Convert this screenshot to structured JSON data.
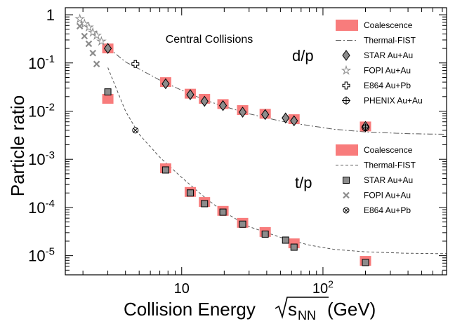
{
  "chart_data": {
    "type": "scatter",
    "title": "Central Collisions",
    "xlabel_prefix": "Collision Energy ",
    "xlabel_sqrt": "s",
    "xlabel_sub": "NN",
    "xlabel_suffix": " (GeV)",
    "ylabel": "Particle ratio",
    "xscale": "log",
    "yscale": "log",
    "xlim": [
      1.5,
      750
    ],
    "ylim": [
      4e-06,
      1.4
    ],
    "xticks": [
      {
        "v": 10,
        "label": "10"
      },
      {
        "v": 100,
        "label": "10",
        "exp": "2"
      }
    ],
    "yticks": [
      {
        "v": 1,
        "label": "1"
      },
      {
        "v": 0.1,
        "label": "10",
        "exp": "-1"
      },
      {
        "v": 0.01,
        "label": "10",
        "exp": "-2"
      },
      {
        "v": 0.001,
        "label": "10",
        "exp": "-3"
      },
      {
        "v": 0.0001,
        "label": "10",
        "exp": "-4"
      },
      {
        "v": 1e-05,
        "label": "10",
        "exp": "-5"
      }
    ],
    "annotations": {
      "dp": "d/p",
      "tp": "t/p"
    },
    "curves": [
      {
        "name": "Thermal-FIST d/p",
        "style": "dashdot",
        "x": [
          3,
          4,
          5,
          7,
          10,
          15,
          20,
          30,
          50,
          80,
          120,
          200,
          400,
          750
        ],
        "y": [
          0.21,
          0.105,
          0.075,
          0.044,
          0.027,
          0.0165,
          0.0125,
          0.0088,
          0.0062,
          0.005,
          0.0042,
          0.0037,
          0.0034,
          0.0033
        ]
      },
      {
        "name": "Thermal-FIST t/p",
        "style": "dashed",
        "x": [
          3,
          4,
          5,
          7,
          10,
          15,
          20,
          30,
          50,
          80,
          120,
          200,
          400,
          750
        ],
        "y": [
          0.08,
          0.01,
          0.0033,
          0.0011,
          0.00042,
          0.00015,
          8e-05,
          4e-05,
          2.4e-05,
          1.65e-05,
          1.35e-05,
          1.2e-05,
          1.12e-05,
          1.1e-05
        ]
      }
    ],
    "series": [
      {
        "name": "Coalescence (d/p)",
        "marker": "band",
        "color": "#f87c7c",
        "x": [
          3,
          7.7,
          11.5,
          14.5,
          19.6,
          27,
          39,
          62.4,
          200
        ],
        "y": [
          0.2,
          0.04,
          0.023,
          0.018,
          0.014,
          0.0105,
          0.0088,
          0.0068,
          0.0048
        ]
      },
      {
        "name": "Coalescence (t/p)",
        "marker": "band",
        "color": "#f87c7c",
        "x": [
          3,
          7.7,
          11.5,
          14.5,
          19.6,
          27,
          39,
          62.4,
          200
        ],
        "y": [
          0.018,
          0.00065,
          0.00021,
          0.00013,
          8.5e-05,
          4.8e-05,
          3.1e-05,
          1.8e-05,
          7.8e-06
        ]
      },
      {
        "name": "STAR Au+Au (d/p)",
        "marker": "diamond",
        "x": [
          3,
          7.7,
          11.5,
          14.5,
          19.6,
          27,
          39,
          54.4,
          62.4,
          200
        ],
        "y": [
          0.2,
          0.037,
          0.022,
          0.016,
          0.013,
          0.0095,
          0.0085,
          0.0072,
          0.0063,
          0.0048
        ]
      },
      {
        "name": "FOPI Au+Au (d/p)",
        "marker": "star",
        "x": [
          1.9,
          2.05,
          2.2,
          2.35,
          2.5,
          2.7
        ],
        "y": [
          0.82,
          0.65,
          0.55,
          0.43,
          0.37,
          0.28
        ]
      },
      {
        "name": "E864 Au+Pb (d/p)",
        "marker": "cross",
        "x": [
          4.7
        ],
        "y": [
          0.095
        ]
      },
      {
        "name": "PHENIX Au+Au (d/p)",
        "marker": "circle-plus",
        "x": [
          200
        ],
        "y": [
          0.0045
        ]
      },
      {
        "name": "STAR Au+Au (t/p)",
        "marker": "square",
        "x": [
          3,
          7.7,
          11.5,
          14.5,
          19.6,
          27,
          39,
          54.4,
          62.4,
          200
        ],
        "y": [
          0.025,
          0.0006,
          0.0002,
          0.00012,
          8e-05,
          4.5e-05,
          2.8e-05,
          2.1e-05,
          1.5e-05,
          7.2e-06
        ]
      },
      {
        "name": "FOPI Au+Au (t/p)",
        "marker": "x",
        "x": [
          1.9,
          2.05,
          2.2,
          2.35,
          2.5
        ],
        "y": [
          0.58,
          0.36,
          0.25,
          0.16,
          0.095
        ]
      },
      {
        "name": "E864 Au+Pb (t/p)",
        "marker": "circle-x",
        "x": [
          4.7
        ],
        "y": [
          0.004
        ]
      }
    ],
    "legend_top": [
      {
        "label": "Coalescence",
        "marker": "band"
      },
      {
        "label": "Thermal-FIST",
        "marker": "dashdot"
      },
      {
        "label": "STAR Au+Au",
        "marker": "diamond"
      },
      {
        "label": "FOPI Au+Au",
        "marker": "star"
      },
      {
        "label": "E864 Au+Pb",
        "marker": "cross"
      },
      {
        "label": "PHENIX Au+Au",
        "marker": "circle-plus"
      }
    ],
    "legend_bottom": [
      {
        "label": "Coalescence",
        "marker": "band"
      },
      {
        "label": "Thermal-FIST",
        "marker": "dashed"
      },
      {
        "label": "STAR Au+Au",
        "marker": "square"
      },
      {
        "label": "FOPI Au+Au",
        "marker": "x"
      },
      {
        "label": "E864 Au+Pb",
        "marker": "circle-x"
      }
    ],
    "colors": {
      "band": "#f87c7c",
      "marker_fill": "#8c8c8c",
      "star_stroke": "#8c8c8c",
      "curve": "#555555",
      "axis": "#000000"
    }
  }
}
